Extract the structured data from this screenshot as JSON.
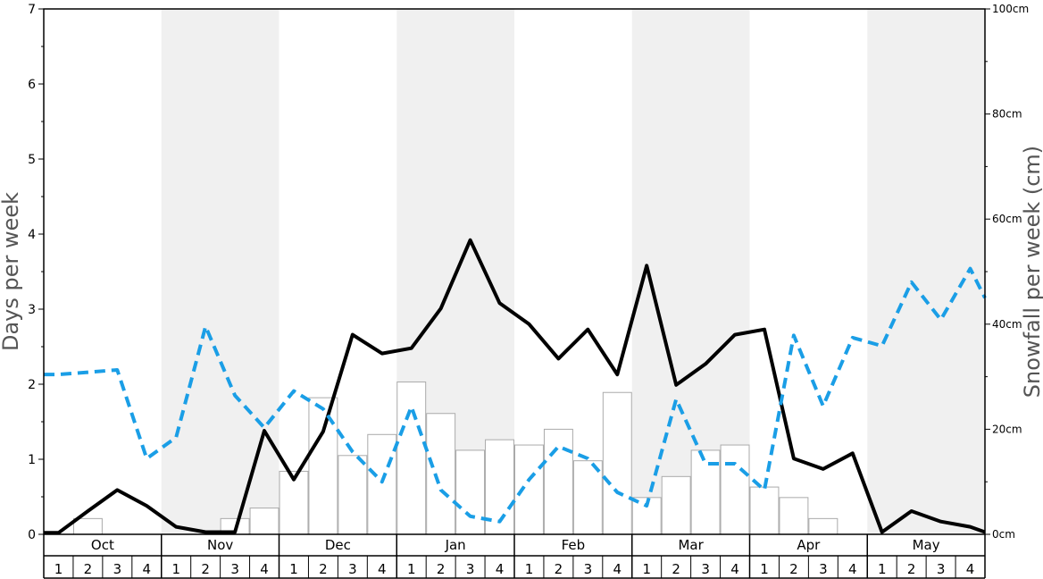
{
  "chart_data": {
    "type": "bar",
    "title": "",
    "ylabel_left": "Days per week",
    "ylabel_right": "Snowfall per week (cm)",
    "ylim_left": [
      0,
      7
    ],
    "yticks_left": [
      0,
      1,
      2,
      3,
      4,
      5,
      6,
      7
    ],
    "ylim_right": [
      0,
      100
    ],
    "yticks_right": [
      0,
      20,
      40,
      60,
      80,
      100
    ],
    "right_tick_suffix": "cm",
    "months": [
      "Oct",
      "Nov",
      "Dec",
      "Jan",
      "Feb",
      "Mar",
      "Apr",
      "May"
    ],
    "weeks": [
      "1",
      "2",
      "3",
      "4"
    ],
    "series": [
      {
        "kind": "bar",
        "axis": "right",
        "values": [
          0,
          3,
          0,
          0,
          0,
          0,
          3,
          5,
          12,
          26,
          15,
          19,
          29,
          23,
          16,
          18,
          17,
          20,
          14,
          27,
          7,
          11,
          16,
          17,
          9,
          7,
          3,
          0,
          0,
          0,
          0,
          0
        ]
      },
      {
        "kind": "line",
        "style": "solid",
        "axis": "left",
        "color": "#000000",
        "values": [
          0.02,
          0.31,
          0.59,
          0.38,
          0.1,
          0.03,
          0.03,
          1.38,
          0.73,
          1.37,
          2.66,
          2.41,
          2.48,
          3.01,
          3.92,
          3.08,
          2.8,
          2.34,
          2.73,
          2.13,
          3.58,
          1.99,
          2.27,
          2.66,
          2.73,
          1.01,
          0.87,
          1.08,
          0.03,
          0.31,
          0.17,
          0.1
        ]
      },
      {
        "kind": "line",
        "style": "dashed",
        "axis": "left",
        "color": "#1a9ee6",
        "values": [
          2.13,
          2.16,
          2.19,
          1.01,
          1.29,
          2.77,
          1.85,
          1.42,
          1.91,
          1.67,
          1.1,
          0.7,
          1.7,
          0.59,
          0.24,
          0.17,
          0.73,
          1.17,
          1.01,
          0.56,
          0.38,
          1.8,
          0.94,
          0.94,
          0.59,
          2.65,
          1.71,
          2.62,
          2.51,
          3.36,
          2.86,
          3.54
        ]
      }
    ],
    "series_end_values": {
      "dashed": 3.15,
      "solid": 0.03
    },
    "shaded_months": [
      "Nov",
      "Jan",
      "Mar",
      "May"
    ],
    "colors": {
      "band": "#f0f0f0",
      "bar_fill": "#ffffff",
      "bar_stroke": "#aaaaaa",
      "axis": "#000000",
      "axis_title": "#555555"
    }
  }
}
